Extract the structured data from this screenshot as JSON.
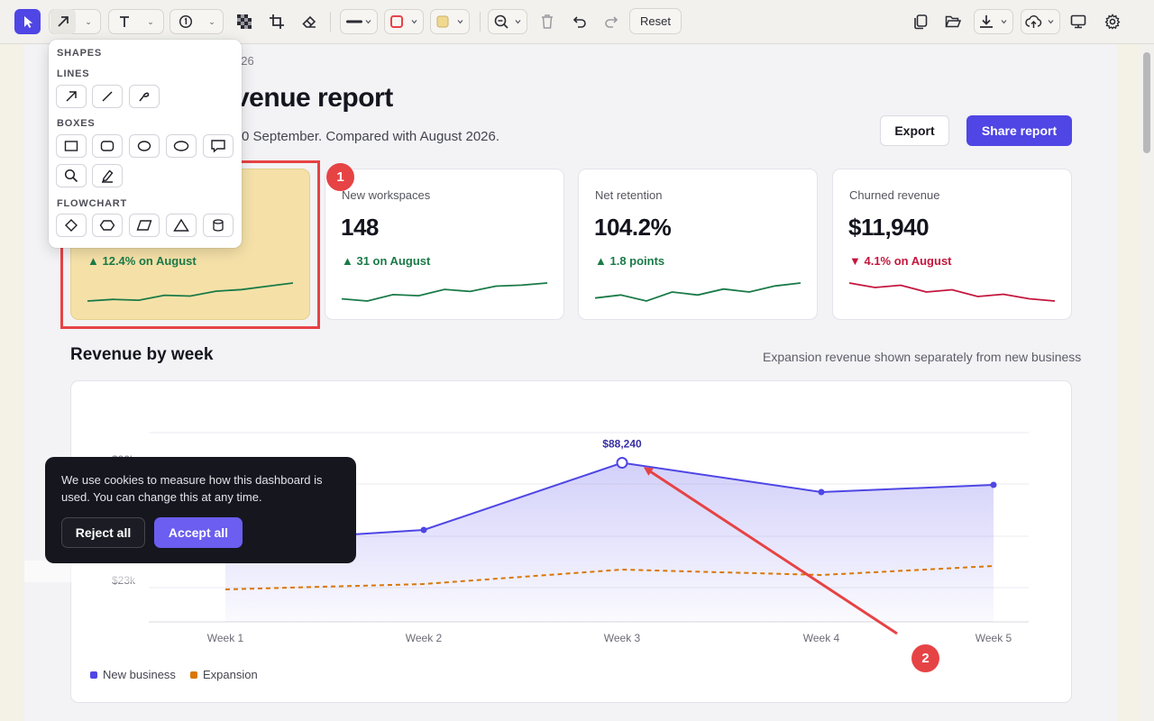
{
  "toolbar": {
    "tools": [
      {
        "name": "select-tool",
        "icon": "cursor-icon"
      },
      {
        "name": "arrow-tool",
        "icon": "arrow-icon"
      },
      {
        "name": "text-tool",
        "icon": "text-icon"
      },
      {
        "name": "step-number-tool",
        "icon": "numbered-circle-icon"
      },
      {
        "name": "pixelate-tool",
        "icon": "pixelate-icon"
      },
      {
        "name": "crop-tool",
        "icon": "crop-icon"
      },
      {
        "name": "eraser-tool",
        "icon": "eraser-icon"
      },
      {
        "name": "stroke-width",
        "icon": "line-width-icon"
      },
      {
        "name": "stroke-color",
        "icon": "stroke-color-swatch",
        "color": "#e64345"
      },
      {
        "name": "fill-color",
        "icon": "fill-color-swatch",
        "color": "#f5e1a8"
      },
      {
        "name": "zoom",
        "icon": "zoom-out-icon"
      },
      {
        "name": "delete",
        "icon": "trash-icon"
      },
      {
        "name": "undo",
        "icon": "undo-icon"
      },
      {
        "name": "redo",
        "icon": "redo-icon"
      }
    ],
    "reset_label": "Reset",
    "right_tools": [
      "copy-icon",
      "open-folder-icon",
      "download-icon",
      "upload-cloud-icon",
      "present-icon",
      "settings-icon"
    ]
  },
  "shapes_menu": {
    "heading": "SHAPES",
    "sections": [
      {
        "title": "LINES",
        "items": [
          "arrow-icon",
          "line-icon",
          "freehand-icon"
        ]
      },
      {
        "title": "BOXES",
        "items": [
          "rectangle-icon",
          "rounded-rectangle-icon",
          "ellipse-icon",
          "oval-icon",
          "speech-bubble-icon",
          "magnifier-icon",
          "highlighter-icon"
        ]
      },
      {
        "title": "FLOWCHART",
        "items": [
          "diamond-icon",
          "hexagon-icon",
          "parallelogram-icon",
          "triangle-icon",
          "cylinder-icon"
        ]
      }
    ]
  },
  "report": {
    "date_partial": "026",
    "title_partial": "venue report",
    "subtitle_partial": "0 September. Compared with August 2026.",
    "export_label": "Export",
    "share_label": "Share report"
  },
  "cards": [
    {
      "label": "",
      "value": "",
      "delta": "▲ 12.4% on August",
      "trend": "up",
      "spark": [
        40,
        42,
        41,
        47,
        46,
        52,
        54,
        58,
        62
      ]
    },
    {
      "label": "New workspaces",
      "value": "148",
      "delta": "▲ 31 on August",
      "trend": "up",
      "spark": [
        45,
        43,
        49,
        48,
        54,
        52,
        57,
        58,
        60
      ]
    },
    {
      "label": "Net retention",
      "value": "104.2%",
      "delta": "▲ 1.8 points",
      "trend": "up",
      "spark": [
        50,
        51,
        49,
        52,
        51,
        53,
        52,
        54,
        55
      ]
    },
    {
      "label": "Churned revenue",
      "value": "$11,940",
      "delta": "▼ 4.1% on August",
      "trend": "down",
      "spark": [
        60,
        58,
        59,
        56,
        57,
        54,
        55,
        53,
        52
      ]
    }
  ],
  "annotations": {
    "badge_1": "1",
    "badge_2": "2",
    "color": "#e64345"
  },
  "revenue_section": {
    "title": "Revenue by week",
    "note": "Expansion revenue shown separately from new business"
  },
  "chart_data": {
    "type": "line",
    "categories": [
      "Week 1",
      "Week 2",
      "Week 3",
      "Week 4",
      "Week 5"
    ],
    "series": [
      {
        "name": "New business",
        "color": "#4f46e5",
        "values": [
          44000,
          51000,
          88240,
          72000,
          76000
        ]
      },
      {
        "name": "Expansion",
        "color": "#d97706",
        "values": [
          18000,
          21000,
          29000,
          26000,
          31000
        ]
      }
    ],
    "ytick_labels": [
      "$90k",
      "$23k"
    ],
    "ytick_values": [
      90000,
      23000
    ],
    "ylim": [
      0,
      120000
    ],
    "peak_label": "$88,240",
    "peak_index": 2,
    "grid": true,
    "legend_position": "bottom-left"
  },
  "cookie_banner": {
    "text": "We use cookies to measure how this dashboard is used. You can change this at any time.",
    "reject_label": "Reject all",
    "accept_label": "Accept all"
  }
}
